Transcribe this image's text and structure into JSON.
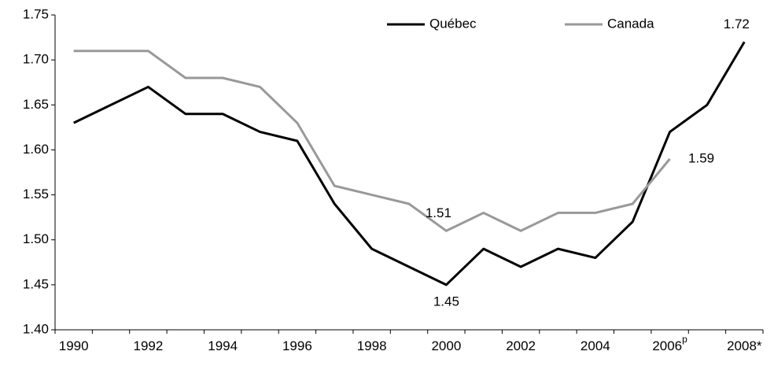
{
  "chart_data": {
    "type": "line",
    "categories": [
      "1990",
      null,
      "1992",
      null,
      "1994",
      null,
      "1996",
      null,
      "1998",
      null,
      "2000",
      null,
      "2002",
      null,
      "2004",
      null,
      "2006",
      null,
      "2008*"
    ],
    "superscripts": {
      "16": "p"
    },
    "series": [
      {
        "name": "Québec",
        "color": "#000000",
        "values": [
          1.63,
          1.65,
          1.67,
          1.64,
          1.64,
          1.62,
          1.61,
          1.54,
          1.49,
          1.47,
          1.45,
          1.49,
          1.47,
          1.49,
          1.48,
          1.52,
          1.62,
          1.65,
          1.72
        ],
        "value_labels": [
          null,
          null,
          null,
          null,
          null,
          null,
          null,
          null,
          null,
          null,
          "1.45",
          null,
          null,
          null,
          null,
          null,
          null,
          null,
          "1.72"
        ]
      },
      {
        "name": "Canada",
        "color": "#999999",
        "values": [
          1.71,
          1.71,
          1.71,
          1.68,
          1.68,
          1.67,
          1.63,
          1.56,
          1.55,
          1.54,
          1.51,
          1.53,
          1.51,
          1.53,
          1.53,
          1.54,
          1.59,
          null,
          null
        ],
        "value_labels": [
          null,
          null,
          null,
          null,
          null,
          null,
          null,
          null,
          null,
          null,
          "1.51",
          null,
          null,
          null,
          null,
          null,
          "1.59",
          null,
          null
        ]
      }
    ],
    "ylim": [
      1.4,
      1.75
    ],
    "yticks": [
      {
        "value": 1.4,
        "label": "1.40"
      },
      1.45,
      {
        "value": 1.5,
        "label": "1.50"
      },
      1.55,
      {
        "value": 1.6,
        "label": "1.60"
      },
      1.65,
      {
        "value": 1.7,
        "label": "1.70"
      },
      1.75
    ],
    "legend": "top"
  }
}
